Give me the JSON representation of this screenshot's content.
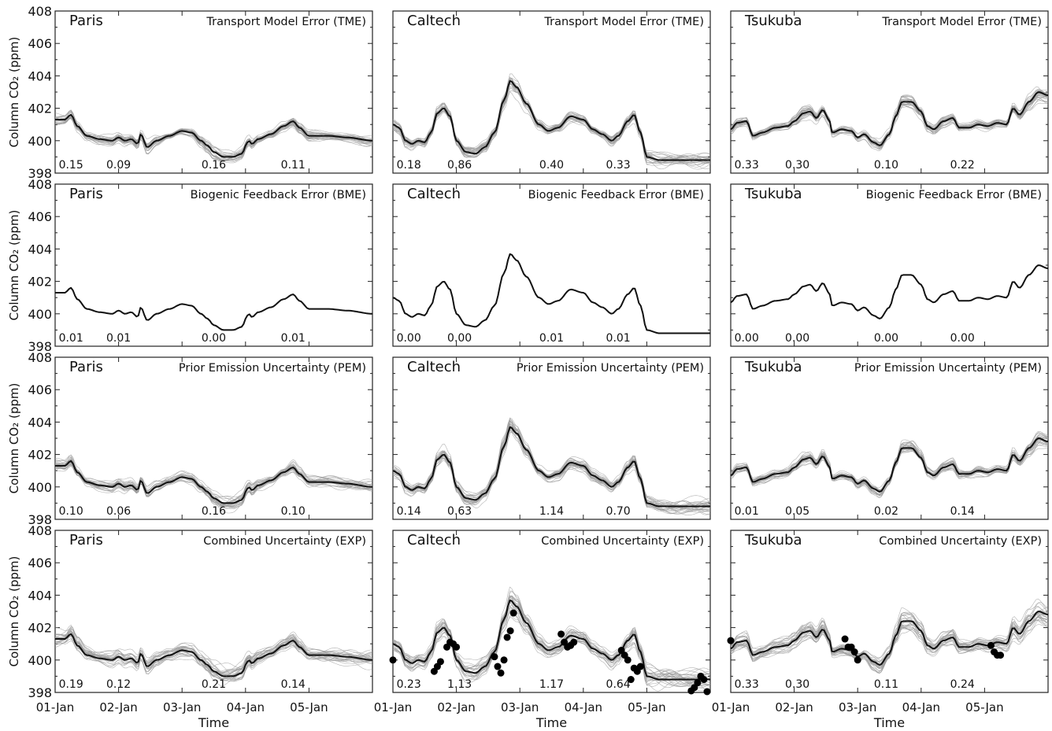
{
  "figure": {
    "ylabel": "Column CO₂ (ppm)",
    "xlabel": "Time"
  },
  "chart_data": {
    "type": "line",
    "ylim": [
      398,
      408
    ],
    "y_ticks": [
      "398",
      "400",
      "402",
      "404",
      "406",
      "408"
    ],
    "xlim": [
      0,
      5
    ],
    "x_ticks": [
      {
        "value": 0,
        "label": "01-Jan"
      },
      {
        "value": 1,
        "label": "02-Jan"
      },
      {
        "value": 2,
        "label": "03-Jan"
      },
      {
        "value": 3,
        "label": "04-Jan"
      },
      {
        "value": 4,
        "label": "05-Jan"
      }
    ],
    "sites": [
      "Paris",
      "Caltech",
      "Tsukuba"
    ],
    "rows": [
      {
        "title": "Transport Model Error (TME)",
        "spread": 0.45
      },
      {
        "title": "Biogenic Feedback Error (BME)",
        "spread": 0.0
      },
      {
        "title": "Prior Emission Uncertainty (PEM)",
        "spread": 0.5
      },
      {
        "title": "Combined Uncertainty (EXP)",
        "spread": 0.7
      }
    ],
    "mean_curves": {
      "Paris": [
        [
          0,
          401.3
        ],
        [
          0.15,
          401.3
        ],
        [
          0.25,
          401.6
        ],
        [
          0.35,
          400.9
        ],
        [
          0.5,
          400.3
        ],
        [
          0.7,
          400.1
        ],
        [
          0.9,
          400.0
        ],
        [
          1.0,
          400.2
        ],
        [
          1.1,
          400.0
        ],
        [
          1.2,
          400.1
        ],
        [
          1.3,
          399.8
        ],
        [
          1.35,
          400.4
        ],
        [
          1.45,
          399.6
        ],
        [
          1.6,
          400.0
        ],
        [
          1.8,
          400.3
        ],
        [
          2.0,
          400.6
        ],
        [
          2.15,
          400.5
        ],
        [
          2.3,
          400.0
        ],
        [
          2.4,
          399.7
        ],
        [
          2.5,
          399.3
        ],
        [
          2.65,
          399.0
        ],
        [
          2.8,
          399.0
        ],
        [
          2.95,
          399.2
        ],
        [
          3.0,
          399.7
        ],
        [
          3.05,
          400.0
        ],
        [
          3.1,
          399.8
        ],
        [
          3.2,
          400.1
        ],
        [
          3.4,
          400.4
        ],
        [
          3.6,
          400.9
        ],
        [
          3.75,
          401.2
        ],
        [
          3.85,
          400.8
        ],
        [
          4.0,
          400.3
        ],
        [
          4.3,
          400.3
        ],
        [
          4.6,
          400.2
        ],
        [
          5.0,
          400.0
        ]
      ],
      "Caltech": [
        [
          0,
          401.0
        ],
        [
          0.1,
          400.8
        ],
        [
          0.2,
          400.0
        ],
        [
          0.3,
          399.8
        ],
        [
          0.4,
          400.0
        ],
        [
          0.5,
          399.9
        ],
        [
          0.6,
          400.5
        ],
        [
          0.7,
          401.7
        ],
        [
          0.8,
          402.0
        ],
        [
          0.9,
          401.5
        ],
        [
          1.0,
          400.0
        ],
        [
          1.15,
          399.3
        ],
        [
          1.3,
          399.2
        ],
        [
          1.45,
          399.6
        ],
        [
          1.6,
          400.5
        ],
        [
          1.75,
          402.5
        ],
        [
          1.85,
          403.7
        ],
        [
          1.95,
          403.3
        ],
        [
          2.1,
          402.3
        ],
        [
          2.3,
          401.0
        ],
        [
          2.45,
          400.6
        ],
        [
          2.6,
          400.8
        ],
        [
          2.8,
          401.5
        ],
        [
          3.0,
          401.3
        ],
        [
          3.15,
          400.7
        ],
        [
          3.3,
          400.4
        ],
        [
          3.45,
          400.0
        ],
        [
          3.55,
          400.3
        ],
        [
          3.7,
          401.2
        ],
        [
          3.8,
          401.6
        ],
        [
          3.9,
          400.5
        ],
        [
          4.0,
          399.0
        ],
        [
          4.2,
          398.8
        ],
        [
          4.6,
          398.8
        ],
        [
          5.0,
          398.8
        ]
      ],
      "Tsukuba": [
        [
          0,
          400.7
        ],
        [
          0.1,
          401.1
        ],
        [
          0.25,
          401.2
        ],
        [
          0.35,
          400.3
        ],
        [
          0.5,
          400.5
        ],
        [
          0.7,
          400.8
        ],
        [
          0.9,
          400.9
        ],
        [
          1.0,
          401.2
        ],
        [
          1.15,
          401.7
        ],
        [
          1.25,
          401.8
        ],
        [
          1.35,
          401.4
        ],
        [
          1.45,
          401.9
        ],
        [
          1.55,
          401.3
        ],
        [
          1.6,
          400.5
        ],
        [
          1.75,
          400.7
        ],
        [
          1.9,
          400.6
        ],
        [
          2.0,
          400.2
        ],
        [
          2.1,
          400.4
        ],
        [
          2.25,
          399.9
        ],
        [
          2.35,
          399.7
        ],
        [
          2.5,
          400.4
        ],
        [
          2.6,
          401.5
        ],
        [
          2.7,
          402.4
        ],
        [
          2.85,
          402.4
        ],
        [
          3.0,
          401.8
        ],
        [
          3.1,
          400.9
        ],
        [
          3.2,
          400.7
        ],
        [
          3.35,
          401.2
        ],
        [
          3.5,
          401.4
        ],
        [
          3.6,
          400.8
        ],
        [
          3.75,
          400.8
        ],
        [
          3.9,
          401.0
        ],
        [
          4.05,
          400.9
        ],
        [
          4.2,
          401.1
        ],
        [
          4.35,
          401.0
        ],
        [
          4.45,
          402.0
        ],
        [
          4.55,
          401.6
        ],
        [
          4.7,
          402.4
        ],
        [
          4.85,
          403.0
        ],
        [
          5.0,
          402.8
        ]
      ]
    },
    "labels": {
      "Paris": [
        [
          "0.15",
          "0.09",
          "0.16",
          "0.11"
        ],
        [
          "0.01",
          "0.01",
          "0.00",
          "0.01"
        ],
        [
          "0.10",
          "0.06",
          "0.16",
          "0.10"
        ],
        [
          "0.19",
          "0.12",
          "0.21",
          "0.14"
        ]
      ],
      "Caltech": [
        [
          "0.18",
          "0.86",
          "0.40",
          "0.33"
        ],
        [
          "0.00",
          "0.00",
          "0.01",
          "0.01"
        ],
        [
          "0.14",
          "0.63",
          "1.14",
          "0.70"
        ],
        [
          "0.23",
          "1.13",
          "1.17",
          "0.64"
        ]
      ],
      "Tsukuba": [
        [
          "0.33",
          "0.30",
          "0.10",
          "0.22"
        ],
        [
          "0.00",
          "0.00",
          "0.00",
          "0.00"
        ],
        [
          "0.01",
          "0.05",
          "0.02",
          "0.14"
        ],
        [
          "0.33",
          "0.30",
          "0.11",
          "0.24"
        ]
      ]
    },
    "label_x": {
      "Paris": [
        0.25,
        1.0,
        2.5,
        3.75
      ],
      "Caltech": [
        0.25,
        1.05,
        2.5,
        3.55
      ],
      "Tsukuba": [
        0.25,
        1.05,
        2.45,
        3.65
      ]
    },
    "observations": {
      "Caltech": [
        [
          0.0,
          400.0
        ],
        [
          0.65,
          399.3
        ],
        [
          0.7,
          399.6
        ],
        [
          0.75,
          399.9
        ],
        [
          0.85,
          400.8
        ],
        [
          0.9,
          401.1
        ],
        [
          0.95,
          401.0
        ],
        [
          1.0,
          400.8
        ],
        [
          1.6,
          400.2
        ],
        [
          1.65,
          399.6
        ],
        [
          1.7,
          399.2
        ],
        [
          1.75,
          400.0
        ],
        [
          1.8,
          401.4
        ],
        [
          1.85,
          401.8
        ],
        [
          1.9,
          402.9
        ],
        [
          2.65,
          401.6
        ],
        [
          2.7,
          401.1
        ],
        [
          2.75,
          400.8
        ],
        [
          2.8,
          400.9
        ],
        [
          2.85,
          401.1
        ],
        [
          3.6,
          400.6
        ],
        [
          3.65,
          400.3
        ],
        [
          3.7,
          400.0
        ],
        [
          3.75,
          398.8
        ],
        [
          3.8,
          399.5
        ],
        [
          3.85,
          399.3
        ],
        [
          3.9,
          399.6
        ],
        [
          4.7,
          398.1
        ],
        [
          4.75,
          398.3
        ],
        [
          4.8,
          398.6
        ],
        [
          4.85,
          399.0
        ],
        [
          4.9,
          398.8
        ],
        [
          4.95,
          397.9
        ]
      ],
      "Tsukuba": [
        [
          0.0,
          401.2
        ],
        [
          1.8,
          401.3
        ],
        [
          1.85,
          400.8
        ],
        [
          1.9,
          400.8
        ],
        [
          1.95,
          400.5
        ],
        [
          2.0,
          400.0
        ],
        [
          4.1,
          400.9
        ],
        [
          4.15,
          400.5
        ],
        [
          4.2,
          400.3
        ],
        [
          4.25,
          400.3
        ]
      ]
    }
  }
}
